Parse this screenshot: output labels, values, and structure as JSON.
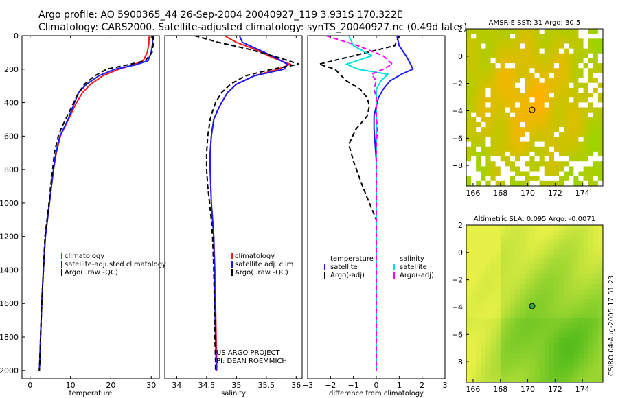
{
  "title_line1": "Argo profile: AO 5900365_44 26-Sep-2004 20040927_119 3.931S 170.322E",
  "title_line2": "Climatology: CARS2000. Satellite-adjusted climatology: synTS_20040927.nc (0.49d later)",
  "colors": {
    "climatology": "#ff1a1a",
    "satellite": "#1a1aff",
    "argo": "#000000",
    "salinity_sat": "#00e0e0",
    "salinity_argo": "#ff00ff",
    "map_low": "#9bd400",
    "map_high": "#ffb200",
    "land": "#ffffff"
  },
  "footer": {
    "credit_line1": "US ARGO PROJECT",
    "credit_line2": "PI: DEAN ROEMMICH",
    "stamp": "CSIRO 04-Aug-2005 17:51:23"
  },
  "chart_data": [
    {
      "type": "line",
      "title": "",
      "xlabel": "temperature",
      "ylabel": "",
      "xlim": [
        -2,
        32
      ],
      "ylim": [
        2050,
        0
      ],
      "xticks": [
        0,
        10,
        20,
        30
      ],
      "yticks": [
        0,
        200,
        400,
        600,
        800,
        1000,
        1200,
        1400,
        1600,
        1800,
        2000
      ],
      "legend": [
        "climatology",
        "satellite-adjusted climatology",
        "Argo(..raw -QC)"
      ],
      "legend_position": "lower-center",
      "series": [
        {
          "name": "climatology",
          "color": "climatology",
          "dash": "",
          "x": [
            29.5,
            29.4,
            29.0,
            28.0,
            25.5,
            22.0,
            18.0,
            15.0,
            13.0,
            11.5,
            10.5,
            9.5,
            8.5,
            7.5,
            6.5,
            5.8,
            5.3,
            4.8,
            4.3,
            3.8,
            3.3,
            2.9,
            2.6,
            2.4,
            2.3
          ],
          "y": [
            0,
            50,
            100,
            150,
            175,
            200,
            240,
            290,
            340,
            400,
            450,
            500,
            550,
            600,
            700,
            800,
            900,
            1000,
            1100,
            1200,
            1400,
            1600,
            1800,
            1950,
            2000
          ]
        },
        {
          "name": "satellite-adjusted climatology",
          "color": "satellite",
          "dash": "",
          "x": [
            30.4,
            30.3,
            30.0,
            29.2,
            26.0,
            21.0,
            17.0,
            14.0,
            12.0,
            11.0,
            10.2,
            9.4,
            8.4,
            7.4,
            6.4,
            5.8,
            5.3,
            4.8,
            4.3,
            3.8,
            3.3,
            2.9,
            2.6,
            2.4,
            2.3
          ],
          "y": [
            0,
            50,
            100,
            150,
            175,
            200,
            240,
            290,
            340,
            400,
            450,
            500,
            550,
            600,
            700,
            800,
            900,
            1000,
            1100,
            1200,
            1400,
            1600,
            1800,
            1950,
            2000
          ]
        },
        {
          "name": "Argo(..raw -QC)",
          "color": "argo",
          "dash": "7,4",
          "x": [
            30.5,
            30.5,
            30.2,
            28.5,
            24.0,
            19.0,
            16.0,
            13.5,
            12.0,
            10.8,
            9.8,
            8.8,
            7.8,
            7.0,
            6.0,
            5.6,
            5.1,
            4.7,
            4.2,
            3.7,
            3.3,
            2.9,
            2.6,
            2.4,
            2.3
          ],
          "y": [
            0,
            50,
            100,
            150,
            175,
            200,
            240,
            290,
            340,
            400,
            450,
            500,
            550,
            600,
            700,
            800,
            900,
            1000,
            1100,
            1200,
            1400,
            1600,
            1800,
            1950,
            2000
          ]
        }
      ]
    },
    {
      "type": "line",
      "title": "",
      "xlabel": "salinity",
      "ylabel": "",
      "xlim": [
        33.8,
        36.1
      ],
      "ylim": [
        2050,
        0
      ],
      "xticks": [
        34,
        34.5,
        35,
        35.5,
        36
      ],
      "yticks": [],
      "legend": [
        "climatology",
        "satellite adj. clim.",
        "Argo(..raw -QC)"
      ],
      "legend_position": "lower-center",
      "series": [
        {
          "name": "climatology",
          "color": "climatology",
          "dash": "",
          "x": [
            34.8,
            35.0,
            35.3,
            35.6,
            35.9,
            35.7,
            35.3,
            35.0,
            34.85,
            34.75,
            34.68,
            34.62,
            34.58,
            34.56,
            34.56,
            34.57,
            34.58,
            34.6,
            34.62,
            34.64,
            34.65,
            34.66,
            34.67,
            34.67
          ],
          "y": [
            0,
            40,
            80,
            130,
            170,
            200,
            240,
            290,
            340,
            400,
            450,
            500,
            600,
            700,
            800,
            900,
            1000,
            1100,
            1200,
            1400,
            1600,
            1800,
            1950,
            2000
          ]
        },
        {
          "name": "satellite adj. clim.",
          "color": "satellite",
          "dash": "",
          "x": [
            35.05,
            35.1,
            35.35,
            35.65,
            35.85,
            35.8,
            35.3,
            35.0,
            34.85,
            34.75,
            34.68,
            34.62,
            34.58,
            34.56,
            34.56,
            34.57,
            34.58,
            34.6,
            34.62,
            34.63,
            34.64,
            34.65,
            34.66,
            34.66
          ],
          "y": [
            0,
            40,
            80,
            130,
            170,
            200,
            240,
            290,
            340,
            400,
            450,
            500,
            600,
            700,
            800,
            900,
            1000,
            1100,
            1200,
            1400,
            1600,
            1800,
            1950,
            2000
          ]
        },
        {
          "name": "Argo(..raw -QC)",
          "color": "argo",
          "dash": "7,4",
          "x": [
            34.3,
            34.7,
            35.2,
            35.7,
            36.05,
            35.6,
            35.15,
            34.9,
            34.75,
            34.65,
            34.6,
            34.56,
            34.52,
            34.5,
            34.5,
            34.52,
            34.55,
            34.58,
            34.6,
            34.62,
            34.63,
            34.64,
            34.65,
            34.65
          ],
          "y": [
            0,
            40,
            80,
            130,
            170,
            200,
            240,
            290,
            340,
            400,
            450,
            500,
            600,
            700,
            800,
            900,
            1000,
            1100,
            1200,
            1400,
            1600,
            1800,
            1950,
            2000
          ]
        }
      ]
    },
    {
      "type": "line",
      "title": "",
      "xlabel": "difference from climatology",
      "ylabel": "",
      "xlim": [
        -3,
        3
      ],
      "ylim": [
        2050,
        0
      ],
      "xticks": [
        -3,
        -2,
        -1,
        0,
        1,
        2,
        3
      ],
      "yticks": [],
      "legend": [
        "temperature",
        "satellite",
        "Argo(-adj)",
        "salinity",
        "satellite",
        "Argo(-adj)"
      ],
      "legend_position": "lower-center",
      "series": [
        {
          "name": "temperature satellite",
          "color": "satellite",
          "dash": "",
          "x": [
            0.9,
            1.0,
            1.3,
            1.5,
            1.6,
            1.1,
            0.6,
            0.3,
            0.1,
            0.0,
            -0.1,
            -0.1,
            -0.05,
            0.0,
            0.0,
            0.0,
            0.0,
            0.0,
            0.0,
            0.0,
            0.0
          ],
          "y": [
            0,
            60,
            120,
            170,
            200,
            230,
            270,
            320,
            370,
            420,
            480,
            560,
            650,
            750,
            900,
            1100,
            1300,
            1500,
            1700,
            1900,
            2000
          ]
        },
        {
          "name": "temperature Argo(-adj)",
          "color": "argo",
          "dash": "7,4",
          "x": [
            1.0,
            0.8,
            -1.0,
            -2.5,
            -1.8,
            -1.6,
            -1.3,
            -0.7,
            -0.4,
            -0.3,
            -0.4,
            -0.9,
            -1.2,
            -1.0,
            -0.6,
            0.0,
            0.0,
            0.0,
            0.0,
            0.0,
            0.0
          ],
          "y": [
            0,
            60,
            120,
            170,
            200,
            230,
            270,
            320,
            370,
            420,
            480,
            560,
            650,
            750,
            900,
            1100,
            1300,
            1500,
            1700,
            1900,
            2000
          ]
        },
        {
          "name": "salinity satellite",
          "color": "salinity_sat",
          "dash": "",
          "x": [
            -1.2,
            -1.0,
            -0.2,
            -1.3,
            -0.8,
            0.5,
            0.2,
            0.0,
            0.0,
            0.0,
            0.0,
            0.0,
            0.0,
            0.0,
            0.0,
            0.0,
            0.0,
            0.0,
            0.0,
            0.0,
            0.0
          ],
          "y": [
            0,
            60,
            120,
            170,
            200,
            230,
            270,
            320,
            370,
            420,
            480,
            560,
            650,
            750,
            900,
            1100,
            1300,
            1500,
            1700,
            1900,
            2000
          ]
        },
        {
          "name": "salinity Argo(-adj)",
          "color": "salinity_argo",
          "dash": "7,4",
          "x": [
            -2.2,
            -0.8,
            0.3,
            0.7,
            0.3,
            -0.2,
            0.0,
            -0.1,
            0.0,
            0.0,
            0.0,
            0.05,
            0.0,
            0.0,
            0.0,
            0.0,
            0.0,
            0.0,
            0.0,
            0.0,
            0.0
          ],
          "y": [
            0,
            60,
            120,
            170,
            200,
            230,
            270,
            320,
            370,
            420,
            480,
            560,
            650,
            750,
            900,
            1100,
            1300,
            1500,
            1700,
            1900,
            2000
          ]
        }
      ]
    },
    {
      "type": "heatmap",
      "title": "AMSR-E SST: 31 Argo: 30.5",
      "xlim": [
        165.5,
        175.5
      ],
      "ylim": [
        -9.5,
        2
      ],
      "xticks": [
        166,
        168,
        170,
        172,
        174
      ],
      "yticks": [
        2,
        0,
        -2,
        -4,
        -6,
        -8
      ],
      "marker": {
        "lon": 170.32,
        "lat": -3.93,
        "filled": false
      },
      "palette": "sst"
    },
    {
      "type": "heatmap",
      "title": "Altimetric SLA: 0.095 Argo: -0.0071",
      "xlim": [
        165.5,
        175.5
      ],
      "ylim": [
        -9.5,
        2
      ],
      "xticks": [
        166,
        168,
        170,
        172,
        174
      ],
      "yticks": [
        2,
        0,
        -2,
        -4,
        -6,
        -8
      ],
      "marker": {
        "lon": 170.32,
        "lat": -3.93,
        "filled": true
      },
      "palette": "sla"
    }
  ]
}
